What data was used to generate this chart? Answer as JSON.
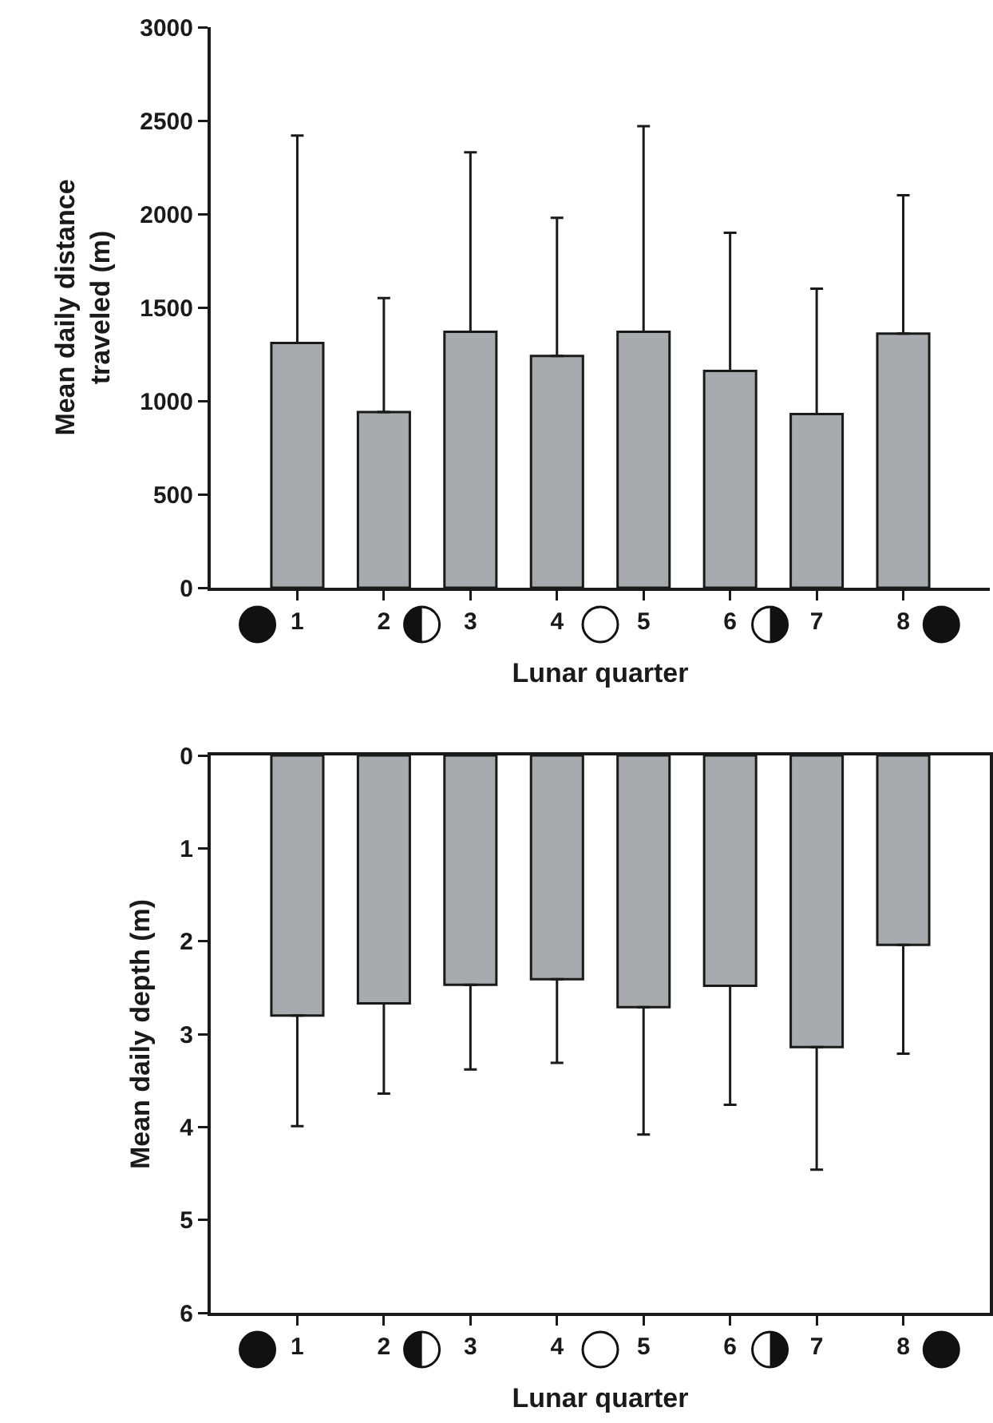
{
  "chart_data": [
    {
      "type": "bar",
      "xlabel": "Lunar quarter",
      "ylabel": "Mean daily distance traveled (m)",
      "categories": [
        "1",
        "2",
        "3",
        "4",
        "5",
        "6",
        "7",
        "8"
      ],
      "values": [
        1310,
        940,
        1370,
        1240,
        1370,
        1160,
        930,
        1360
      ],
      "errors": [
        [
          1310,
          2420
        ],
        [
          940,
          1550
        ],
        [
          1370,
          2330
        ],
        [
          1240,
          1980
        ],
        [
          1370,
          2470
        ],
        [
          1160,
          1900
        ],
        [
          930,
          1600
        ],
        [
          1360,
          2100
        ]
      ],
      "color": "#a9aaae",
      "ylim": [
        0,
        3000
      ],
      "yticks": [
        0,
        500,
        1000,
        1500,
        2000,
        2500,
        3000
      ],
      "grid": false
    },
    {
      "type": "bar",
      "xlabel": "Lunar quarter",
      "ylabel": "Mean daily depth (m)",
      "categories": [
        "1",
        "2",
        "3",
        "4",
        "5",
        "6",
        "7",
        "8"
      ],
      "values": [
        2.8,
        2.67,
        2.47,
        2.41,
        2.71,
        2.48,
        3.14,
        2.04
      ],
      "errors": [
        [
          2.8,
          3.99
        ],
        [
          2.67,
          3.64
        ],
        [
          2.47,
          3.38
        ],
        [
          2.41,
          3.31
        ],
        [
          2.71,
          4.08
        ],
        [
          2.48,
          3.76
        ],
        [
          3.14,
          4.46
        ],
        [
          2.04,
          3.21
        ]
      ],
      "color": "#a9aaae",
      "ylim": [
        6,
        0
      ],
      "yticks": [
        0,
        1,
        2,
        3,
        4,
        5,
        6
      ],
      "grid": false
    }
  ]
}
